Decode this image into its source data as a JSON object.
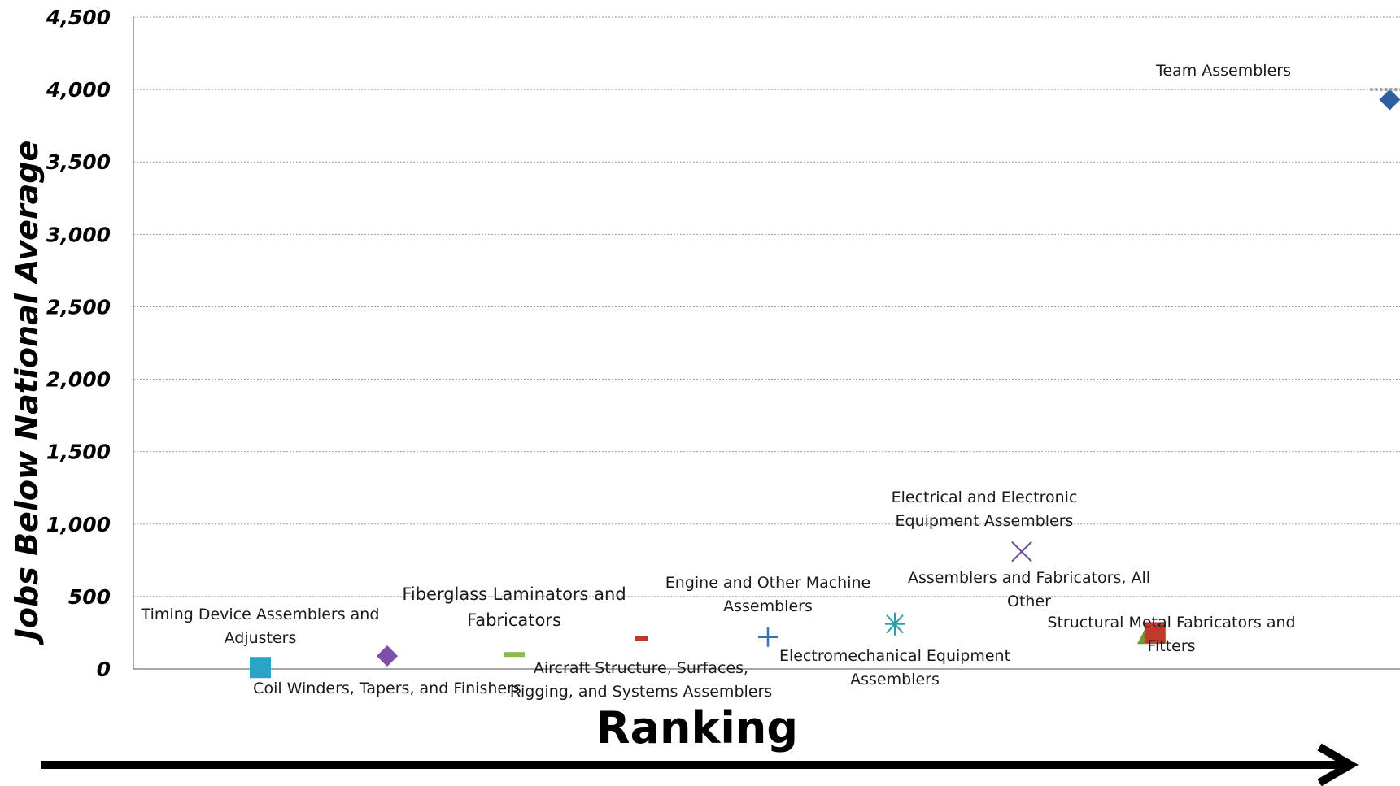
{
  "chart_data": {
    "type": "scatter",
    "title": "",
    "xlabel": "Ranking",
    "ylabel": "Jobs Below National Average",
    "ylim": [
      0,
      4500
    ],
    "yticks": [
      0,
      500,
      1000,
      1500,
      2000,
      2500,
      3000,
      3500,
      4000,
      4500
    ],
    "ytick_labels": [
      "0",
      "500",
      "1,000",
      "1,500",
      "2,000",
      "2,500",
      "3,000",
      "3,500",
      "4,000",
      "4,500"
    ],
    "grid": true,
    "legend": "none",
    "points": [
      {
        "rank": 1,
        "label": "Timing Device Assemblers and Adjusters",
        "y": 10,
        "marker": "square",
        "color": "#2BA3C9"
      },
      {
        "rank": 2,
        "label": "Coil Winders, Tapers, and Finishers",
        "y": 90,
        "marker": "diamond",
        "color": "#7E4FA8"
      },
      {
        "rank": 3,
        "label": "Fiberglass Laminators and Fabricators",
        "y": 100,
        "marker": "dash",
        "color": "#8DB94A"
      },
      {
        "rank": 4,
        "label": "Aircraft Structure, Surfaces, Rigging, and Systems Assemblers",
        "y": 210,
        "marker": "dash",
        "color": "#C0392B"
      },
      {
        "rank": 5,
        "label": "Engine and Other Machine Assemblers",
        "y": 220,
        "marker": "plus",
        "color": "#3A6EB5"
      },
      {
        "rank": 6,
        "label": "Electromechanical Equipment Assemblers",
        "y": 310,
        "marker": "asterisk",
        "color": "#2E9BA7"
      },
      {
        "rank": 7,
        "label": "Electrical and Electronic Equipment Assemblers",
        "y": 810,
        "marker": "x",
        "color": "#6B4F9A"
      },
      {
        "rank": 8,
        "label": "Assemblers and Fabricators, All Other",
        "y": 240,
        "marker": "triangle",
        "color": "#6E9A2E"
      },
      {
        "rank": 8.05,
        "label": "Structural Metal Fabricators and Fitters",
        "y": 250,
        "marker": "square",
        "color": "#C0392B"
      },
      {
        "rank": 9.9,
        "label": "Team Assemblers",
        "y": 3930,
        "marker": "diamond",
        "color": "#2E5FA3"
      }
    ]
  }
}
